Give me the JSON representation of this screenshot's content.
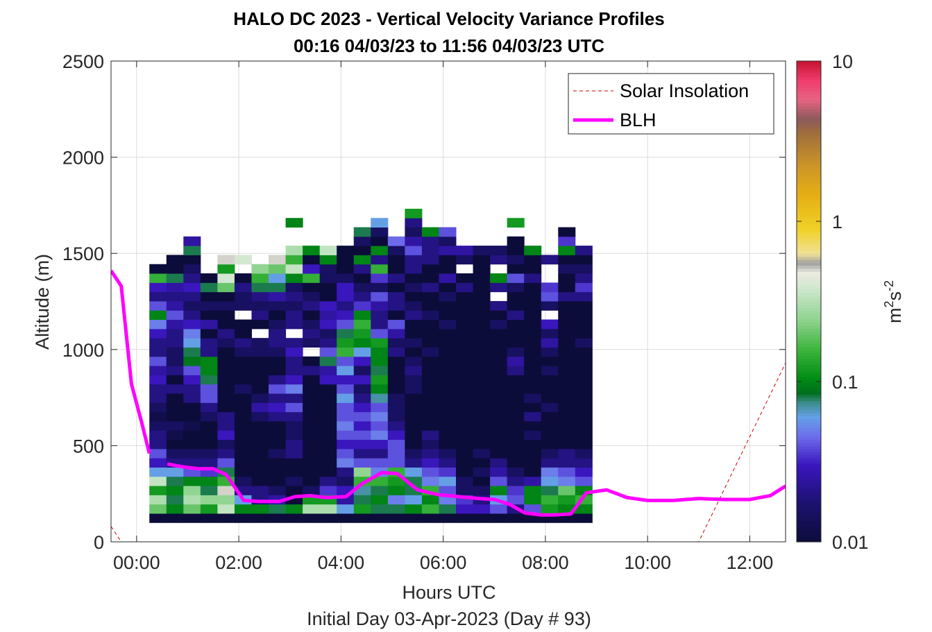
{
  "chart_data": {
    "type": "heatmap",
    "title": "HALO DC 2023 - Vertical Velocity Variance Profiles",
    "subtitle": "00:16 04/03/23 to 11:56 04/03/23  UTC",
    "xlabel": "Hours UTC",
    "xlabel2": "Initial Day 03-Apr-2023 (Day # 93)",
    "ylabel": "Altitude (m)",
    "xlim": [
      -0.5,
      12.7
    ],
    "ylim": [
      0,
      2500
    ],
    "x_ticks": [
      0,
      2,
      4,
      6,
      8,
      10,
      12
    ],
    "x_tick_labels": [
      "00:00",
      "02:00",
      "04:00",
      "06:00",
      "08:00",
      "10:00",
      "12:00"
    ],
    "y_ticks": [
      0,
      500,
      1000,
      1500,
      2000,
      2500
    ],
    "y_tick_labels": [
      "0",
      "500",
      "1000",
      "1500",
      "2000",
      "2500"
    ],
    "grid": true,
    "colorbar": {
      "label": "m²s⁻²",
      "label_base": "m",
      "label_sup1": "2",
      "label_mid": "s",
      "label_sup2": "-2",
      "scale": "log",
      "range": [
        0.01,
        10
      ],
      "ticks": [
        0.01,
        0.1,
        1,
        10
      ],
      "tick_labels": [
        "0.01",
        "0.1",
        "1",
        "10"
      ]
    },
    "grid_spec": {
      "x_start": 0.25,
      "x_step": 0.3333,
      "n_cols": 26,
      "y_start": 100,
      "y_step": 48,
      "n_rows": 33
    },
    "columns": [
      [
        0.01,
        0.2,
        0.3,
        0.12,
        0.35,
        0.06,
        0.03,
        0.04,
        0.02,
        0.02,
        0.015,
        0.012,
        0.015,
        0.02,
        0.02,
        0.03,
        0.025,
        0.04,
        0.02,
        0.02,
        0.03,
        0.05,
        0.1,
        0.04,
        0.02,
        0.03,
        0.15,
        0.01
      ],
      [
        0.01,
        0.1,
        0.08,
        0.1,
        0.08,
        0.06,
        0.02,
        0.015,
        0.01,
        0.012,
        0.015,
        0.01,
        0.01,
        0.01,
        0.02,
        0.01,
        0.02,
        0.015,
        0.015,
        0.02,
        0.02,
        0.025,
        0.04,
        0.025,
        0.02,
        0.025,
        0.08,
        0.01,
        0.01
      ],
      [
        0.01,
        0.2,
        0.3,
        0.25,
        0.1,
        0.04,
        0.02,
        0.015,
        0.01,
        0.01,
        0.012,
        0.01,
        0.01,
        0.02,
        0.02,
        0.03,
        0.04,
        0.09,
        0.08,
        0.06,
        0.05,
        0.03,
        0.02,
        0.015,
        0.02,
        0.03,
        0.02,
        0.015,
        0.01,
        0.08,
        0.025
      ],
      [
        0.01,
        0.12,
        0.25,
        0.08,
        0.1,
        0.035,
        0.02,
        0.015,
        0.01,
        0.01,
        0.01,
        0.015,
        0.02,
        0.04,
        0.04,
        0.08,
        0.1,
        0.1,
        0.02,
        0.02,
        0.01,
        0.025,
        0.01,
        0.015,
        0.01,
        0.08,
        0.01
      ],
      [
        0.01,
        0.35,
        0.25,
        0.5,
        0.15,
        0.08,
        0.04,
        0.02,
        0.015,
        0.03,
        0.02,
        0.02,
        0.01,
        0.01,
        0.01,
        0.01,
        0.01,
        0.01,
        0.01,
        0.015,
        0.02,
        0.01,
        0.01,
        0.015,
        0.01,
        0.2,
        0.4,
        0.12,
        0.5
      ],
      [
        0.01,
        0.1,
        0.06,
        0.02,
        0.015,
        0.01,
        0.01,
        0.01,
        0.01,
        0.01,
        0.01,
        0.01,
        0.01,
        0.01,
        0.015,
        0.01,
        0.01,
        0.01,
        0.015,
        0.02,
        0.01,
        0.01,
        null,
        0.015,
        0.015,
        0.02,
        0.01,
        null,
        0.4
      ],
      [
        0.01,
        0.1,
        0.02,
        0.02,
        0.01,
        0.01,
        0.01,
        0.01,
        0.01,
        0.01,
        0.01,
        0.015,
        0.025,
        0.015,
        0.01,
        0.01,
        0.01,
        0.01,
        0.015,
        0.015,
        null,
        0.01,
        0.02,
        0.015,
        0.02,
        0.08,
        0.15,
        0.25
      ],
      [
        0.01,
        0.08,
        0.025,
        0.015,
        0.01,
        0.01,
        0.01,
        0.015,
        0.01,
        0.01,
        0.01,
        0.02,
        0.03,
        0.02,
        0.04,
        0.02,
        0.01,
        0.01,
        0.015,
        0.02,
        0.02,
        0.015,
        0.01,
        0.015,
        0.025,
        0.08,
        0.06,
        0.2,
        0.5
      ],
      [
        0.01,
        0.1,
        0.01,
        0.01,
        0.015,
        0.01,
        0.01,
        0.02,
        0.02,
        0.015,
        0.015,
        0.02,
        0.04,
        0.02,
        0.05,
        0.03,
        0.02,
        0.02,
        0.03,
        0.02,
        null,
        0.02,
        0.02,
        0.015,
        0.02,
        0.015,
        0.1,
        0.35,
        0.15,
        0.3,
        null,
        null,
        0.1
      ],
      [
        0.01,
        0.3,
        0.12,
        0.015,
        0.01,
        0.01,
        0.01,
        0.01,
        0.01,
        0.01,
        0.01,
        0.01,
        0.01,
        0.01,
        0.01,
        0.01,
        0.02,
        0.01,
        null,
        0.015,
        0.02,
        0.015,
        0.01,
        0.02,
        0.015,
        0.01,
        0.15,
        0.03,
        0.01,
        0.1
      ],
      [
        0.01,
        0.3,
        0.12,
        0.035,
        0.02,
        0.01,
        0.01,
        0.01,
        0.01,
        0.01,
        0.01,
        0.01,
        0.01,
        0.01,
        0.01,
        0.03,
        0.025,
        0.08,
        0.04,
        0.02,
        0.015,
        0.03,
        0.025,
        0.03,
        0.01,
        0.01,
        0.015,
        0.015,
        0.1,
        0.35
      ],
      [
        0.01,
        0.06,
        0.025,
        0.03,
        0.015,
        0.02,
        0.05,
        0.04,
        0.03,
        0.04,
        0.05,
        0.04,
        0.04,
        0.06,
        0.04,
        0.03,
        0.06,
        0.04,
        0.15,
        0.12,
        0.08,
        0.04,
        0.03,
        0.02,
        0.03,
        0.03,
        0.015,
        0.01,
        0.01,
        0.01
      ],
      [
        0.01,
        0.12,
        0.08,
        0.07,
        0.15,
        0.25,
        0.04,
        0.02,
        0.03,
        0.04,
        0.03,
        0.04,
        0.03,
        0.02,
        0.015,
        0.03,
        0.015,
        0.03,
        0.06,
        0.1,
        0.12,
        0.15,
        0.1,
        0.035,
        0.02,
        0.015,
        0.01,
        0.02,
        0.1,
        0.01,
        0.015,
        0.08
      ],
      [
        0.01,
        0.08,
        0.1,
        0.08,
        0.15,
        0.05,
        0.04,
        0.02,
        0.03,
        0.05,
        0.04,
        0.05,
        0.04,
        0.07,
        0.1,
        0.12,
        0.08,
        0.1,
        0.1,
        0.12,
        0.04,
        0.02,
        0.02,
        0.025,
        0.04,
        0.015,
        0.035,
        0.15,
        0.02,
        0.1,
        0.01,
        0.015,
        0.06
      ],
      [
        0.01,
        0.08,
        0.05,
        0.1,
        0.12,
        0.15,
        0.04,
        0.04,
        0.04,
        0.03,
        0.02,
        0.015,
        0.015,
        0.015,
        0.01,
        0.01,
        0.01,
        0.01,
        0.02,
        0.015,
        0.025,
        0.04,
        0.01,
        0.02,
        0.02,
        0.01,
        0.02,
        0.01,
        0.01,
        0.015,
        0.045
      ],
      [
        0.01,
        0.1,
        0.06,
        0.08,
        0.08,
        0.06,
        0.02,
        0.015,
        0.01,
        0.01,
        0.01,
        0.01,
        0.01,
        0.01,
        0.015,
        0.015,
        0.02,
        0.015,
        0.01,
        0.015,
        0.01,
        0.01,
        0.02,
        0.015,
        0.01,
        0.015,
        0.01,
        0.02,
        0.02,
        0.04,
        0.025,
        0.015,
        0.02,
        0.12
      ],
      [
        0.01,
        0.15,
        0.1,
        0.15,
        0.05,
        0.04,
        0.03,
        0.02,
        0.015,
        0.02,
        0.01,
        0.01,
        0.01,
        0.01,
        0.01,
        0.01,
        0.01,
        0.01,
        0.015,
        0.01,
        0.01,
        0.01,
        0.015,
        0.01,
        0.01,
        0.02,
        0.01,
        0.01,
        0.02,
        0.02,
        0.02,
        0.1
      ],
      [
        0.01,
        0.08,
        0.05,
        0.04,
        0.06,
        0.035,
        0.02,
        0.015,
        0.01,
        0.01,
        0.01,
        0.01,
        0.01,
        0.01,
        0.01,
        0.01,
        0.01,
        0.01,
        0.01,
        0.01,
        0.01,
        0.015,
        0.01,
        0.01,
        0.015,
        0.01,
        0.025,
        0.01,
        0.01,
        0.025,
        0.015,
        0.04
      ],
      [
        0.01,
        0.03,
        0.035,
        0.015,
        0.015,
        0.01,
        0.01,
        0.01,
        0.01,
        0.01,
        0.01,
        0.01,
        0.01,
        0.01,
        0.01,
        0.01,
        0.01,
        0.01,
        0.01,
        0.01,
        0.01,
        0.01,
        0.01,
        0.01,
        0.01,
        0.02,
        0.01,
        null,
        0.015,
        0.025
      ],
      [
        0.01,
        0.03,
        0.02,
        0.015,
        0.01,
        0.015,
        0.01,
        0.015,
        0.01,
        0.01,
        0.01,
        0.01,
        0.01,
        0.01,
        0.01,
        0.01,
        0.01,
        0.01,
        0.01,
        0.01,
        0.01,
        0.01,
        0.01,
        0.01,
        0.01,
        0.01,
        0.01,
        0.01,
        0.01,
        0.015
      ],
      [
        0.01,
        0.04,
        0.06,
        0.1,
        0.04,
        0.025,
        0.02,
        0.01,
        0.01,
        0.01,
        0.01,
        0.01,
        0.01,
        0.01,
        0.01,
        0.01,
        0.01,
        0.01,
        0.01,
        0.01,
        0.01,
        0.015,
        0.01,
        0.02,
        null,
        0.02,
        0.1,
        null,
        0.02,
        0.015
      ],
      [
        0.01,
        0.02,
        0.04,
        0.035,
        0.02,
        0.015,
        0.01,
        0.01,
        0.01,
        0.01,
        0.01,
        0.01,
        0.01,
        0.01,
        0.01,
        0.01,
        0.02,
        0.025,
        0.015,
        0.01,
        0.01,
        0.01,
        0.02,
        0.01,
        0.01,
        0.015,
        0.04,
        0.01,
        0.015,
        0.01,
        0.01,
        null,
        0.12
      ],
      [
        0.01,
        0.04,
        0.1,
        0.1,
        0.025,
        0.01,
        0.01,
        0.01,
        0.01,
        0.015,
        0.01,
        0.02,
        0.01,
        0.015,
        0.01,
        0.01,
        0.01,
        0.01,
        0.01,
        0.01,
        0.01,
        0.01,
        0.01,
        0.01,
        0.01,
        0.01,
        0.02,
        0.01,
        0.01,
        0.1
      ],
      [
        0.01,
        0.12,
        0.15,
        0.08,
        0.06,
        0.05,
        0.02,
        0.015,
        0.01,
        0.01,
        0.01,
        0.01,
        0.015,
        0.01,
        0.01,
        0.01,
        0.015,
        0.01,
        0.015,
        0.025,
        0.015,
        0.03,
        null,
        0.015,
        0.04,
        0.035,
        null,
        null,
        0.02,
        null,
        null,
        null,
        null,
        null
      ],
      [
        0.01,
        0.1,
        0.12,
        0.2,
        0.05,
        0.04,
        0.02,
        0.02,
        0.01,
        0.01,
        0.01,
        0.01,
        0.01,
        0.01,
        0.01,
        0.01,
        0.01,
        0.01,
        0.01,
        0.01,
        0.01,
        0.01,
        0.01,
        0.01,
        0.02,
        0.01,
        0.01,
        0.015,
        0.01,
        0.1,
        0.035,
        0.01
      ],
      [
        0.01,
        0.1,
        0.15,
        0.1,
        0.04,
        0.03,
        0.02,
        0.015,
        0.01,
        0.01,
        0.01,
        0.01,
        0.01,
        0.01,
        0.01,
        0.01,
        0.01,
        0.01,
        0.01,
        0.015,
        0.01,
        0.01,
        0.01,
        0.01,
        0.02,
        0.035,
        0.02,
        0.015,
        0.01,
        0.02
      ]
    ],
    "series": [
      {
        "name": "Solar Insolation",
        "style": "dashed",
        "color": "#cc0000",
        "x": [
          -0.5,
          -0.3,
          11.0,
          12.7
        ],
        "y": [
          80,
          0,
          0,
          930
        ]
      },
      {
        "name": "BLH",
        "style": "solid",
        "color": "#ff00ff",
        "segments": [
          {
            "x": [
              -0.5,
              -0.3,
              -0.1,
              0.1,
              0.25
            ],
            "y": [
              1410,
              1330,
              820,
              620,
              460
            ]
          },
          {
            "x": [
              0.6,
              0.9,
              1.2,
              1.5,
              1.75,
              2.1,
              2.4,
              2.8,
              3.1,
              3.4,
              3.7,
              4.1,
              4.4,
              4.8,
              5.1,
              5.5,
              5.9,
              6.3,
              6.7,
              7.0,
              7.3,
              7.6,
              7.9,
              8.2,
              8.5,
              8.8,
              9.2,
              9.6,
              10.0,
              10.5,
              11.0,
              11.5,
              12.0,
              12.4,
              12.7
            ],
            "y": [
              405,
              390,
              380,
              380,
              350,
              215,
              210,
              210,
              235,
              240,
              230,
              235,
              300,
              360,
              355,
              270,
              245,
              235,
              225,
              220,
              195,
              150,
              140,
              140,
              145,
              255,
              270,
              230,
              215,
              215,
              225,
              220,
              220,
              240,
              290
            ]
          }
        ]
      }
    ],
    "legend": {
      "placement": "top-right",
      "entries": [
        "Solar Insolation",
        "BLH"
      ]
    }
  }
}
